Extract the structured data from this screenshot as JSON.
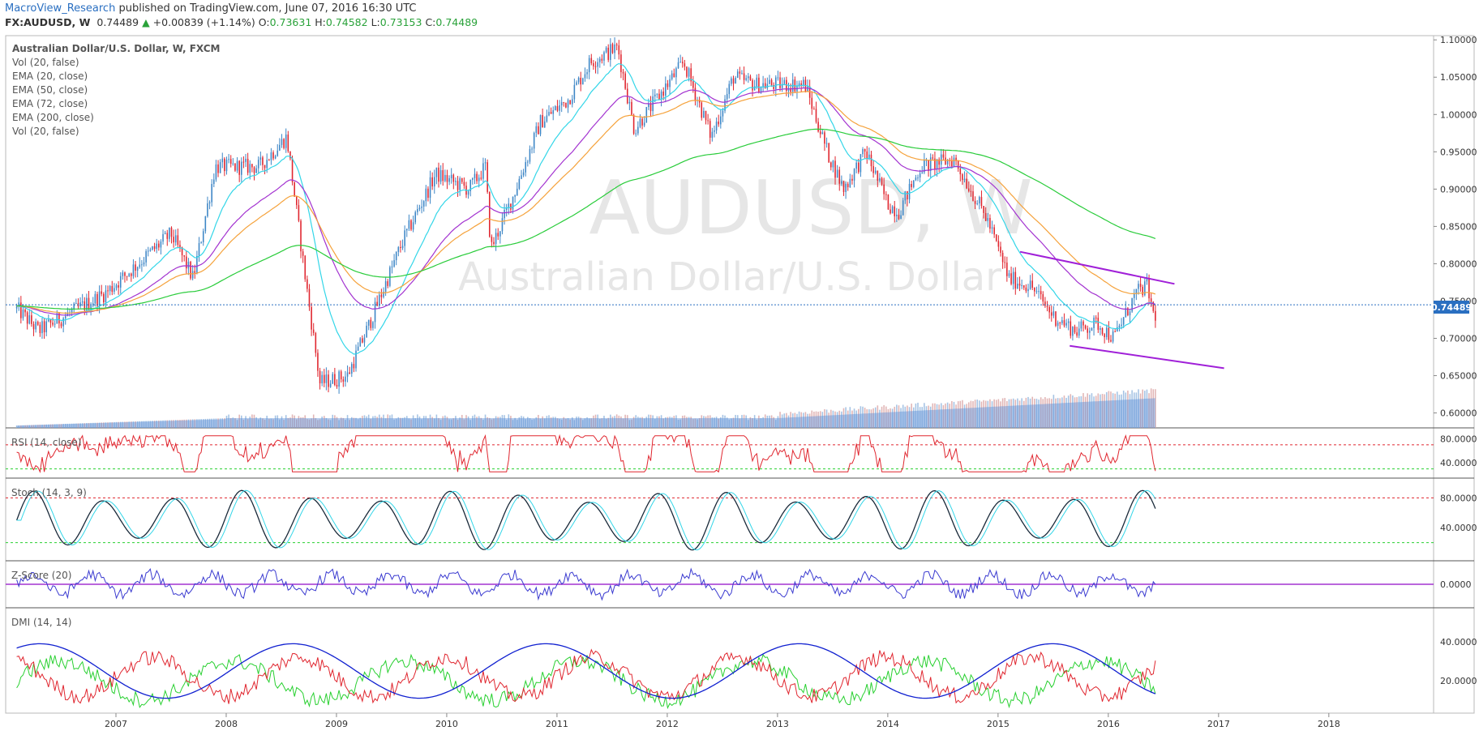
{
  "header": {
    "author": "MacroView_Research",
    "published_text": " published on TradingView.com, June 07, 2016 16:30 UTC",
    "symbol": "FX:AUDUSD, W",
    "last": "0.74489",
    "change": "+0.00839 (+1.14%)",
    "o_label": "O:",
    "o": "0.73631",
    "h_label": "H:",
    "h": "0.74582",
    "l_label": "L:",
    "l": "0.73153",
    "c_label": "C:",
    "c": "0.74489"
  },
  "watermark": {
    "symbol": "AUDUSD, W",
    "name": "Australian Dollar/U.S. Dollar"
  },
  "legend": [
    "Australian Dollar/U.S. Dollar, W, FXCM",
    "Vol (20, false)",
    "EMA (20, close)",
    "EMA (50, close)",
    "EMA (72, close)",
    "EMA (200, close)",
    "Vol (20, false)"
  ],
  "pane_labels": {
    "rsi": "RSI (14, close)",
    "stoch": "Stoch (14, 3, 9)",
    "zscore": "Z-Score (20)",
    "dmi": "DMI (14, 14)"
  },
  "last_price_label": "0.74489",
  "colors": {
    "up_candle": "#3d86c6",
    "down_candle": "#e0262f",
    "ema20": "#33d6e8",
    "ema50": "#a333d0",
    "ema72": "#f5a23b",
    "ema200": "#29cc3a",
    "trendline": "#a020d8",
    "rsi": "#e0262f",
    "zscore": "#3a3ad0",
    "dmi_plus": "#28d030",
    "dmi_minus": "#e0262f",
    "adx": "#1020d0"
  },
  "chart_data": [
    {
      "type": "candlestick",
      "title": "Australian Dollar/U.S. Dollar, W, FXCM",
      "ylim": [
        0.58,
        1.11
      ],
      "yticks": [
        "1.10000",
        "1.05000",
        "1.00000",
        "0.95000",
        "0.90000",
        "0.85000",
        "0.80000",
        "0.75000",
        "0.70000",
        "0.65000",
        "0.60000"
      ],
      "xticks": [
        "2007",
        "2008",
        "2009",
        "2010",
        "2011",
        "2012",
        "2013",
        "2014",
        "2015",
        "2016",
        "2017",
        "2018"
      ],
      "last_close": 0.74489,
      "key_points": [
        {
          "date": "2006.1",
          "close": 0.74
        },
        {
          "date": "2006.3",
          "close": 0.71
        },
        {
          "date": "2006.9",
          "close": 0.76
        },
        {
          "date": "2007.5",
          "close": 0.84
        },
        {
          "date": "2007.7",
          "close": 0.78
        },
        {
          "date": "2007.9",
          "close": 0.93
        },
        {
          "date": "2008.3",
          "close": 0.93
        },
        {
          "date": "2008.55",
          "close": 0.97
        },
        {
          "date": "2008.7",
          "close": 0.8
        },
        {
          "date": "2008.85",
          "close": 0.64
        },
        {
          "date": "2009.1",
          "close": 0.65
        },
        {
          "date": "2009.3",
          "close": 0.72
        },
        {
          "date": "2009.6",
          "close": 0.83
        },
        {
          "date": "2009.9",
          "close": 0.92
        },
        {
          "date": "2010.2",
          "close": 0.9
        },
        {
          "date": "2010.35",
          "close": 0.93
        },
        {
          "date": "2010.4",
          "close": 0.82
        },
        {
          "date": "2010.6",
          "close": 0.89
        },
        {
          "date": "2010.85",
          "close": 0.99
        },
        {
          "date": "2011.1",
          "close": 1.02
        },
        {
          "date": "2011.3",
          "close": 1.07
        },
        {
          "date": "2011.55",
          "close": 1.09
        },
        {
          "date": "2011.7",
          "close": 0.98
        },
        {
          "date": "2011.95",
          "close": 1.03
        },
        {
          "date": "2012.15",
          "close": 1.07
        },
        {
          "date": "2012.4",
          "close": 0.97
        },
        {
          "date": "2012.6",
          "close": 1.05
        },
        {
          "date": "2012.8",
          "close": 1.04
        },
        {
          "date": "2013.0",
          "close": 1.04
        },
        {
          "date": "2013.25",
          "close": 1.04
        },
        {
          "date": "2013.45",
          "close": 0.95
        },
        {
          "date": "2013.6",
          "close": 0.9
        },
        {
          "date": "2013.8",
          "close": 0.95
        },
        {
          "date": "2014.0",
          "close": 0.88
        },
        {
          "date": "2014.1",
          "close": 0.87
        },
        {
          "date": "2014.3",
          "close": 0.93
        },
        {
          "date": "2014.6",
          "close": 0.94
        },
        {
          "date": "2014.9",
          "close": 0.86
        },
        {
          "date": "2015.1",
          "close": 0.78
        },
        {
          "date": "2015.3",
          "close": 0.77
        },
        {
          "date": "2015.5",
          "close": 0.73
        },
        {
          "date": "2015.7",
          "close": 0.71
        },
        {
          "date": "2015.9",
          "close": 0.72
        },
        {
          "date": "2016.05",
          "close": 0.7
        },
        {
          "date": "2016.25",
          "close": 0.76
        },
        {
          "date": "2016.35",
          "close": 0.77
        },
        {
          "date": "2016.42",
          "close": 0.725
        },
        {
          "date": "2016.44",
          "close": 0.745
        }
      ],
      "trendlines": [
        {
          "from": [
            "2015.2",
            0.816
          ],
          "to": [
            "2016.6",
            0.773
          ]
        },
        {
          "from": [
            "2015.65",
            0.69
          ],
          "to": [
            "2017.05",
            0.66
          ]
        }
      ]
    },
    {
      "type": "line",
      "title": "RSI (14, close)",
      "yticks": [
        "80.0000",
        "40.0000"
      ],
      "levels": [
        70,
        30
      ]
    },
    {
      "type": "line",
      "title": "Stoch (14, 3, 9)",
      "yticks": [
        "80.0000",
        "40.0000"
      ],
      "levels": [
        80,
        20
      ]
    },
    {
      "type": "line",
      "title": "Z-Score (20)",
      "yticks": [
        "0.0000"
      ],
      "levels": [
        0
      ]
    },
    {
      "type": "line",
      "title": "DMI (14, 14)",
      "yticks": [
        "40.0000",
        "20.0000"
      ]
    }
  ]
}
